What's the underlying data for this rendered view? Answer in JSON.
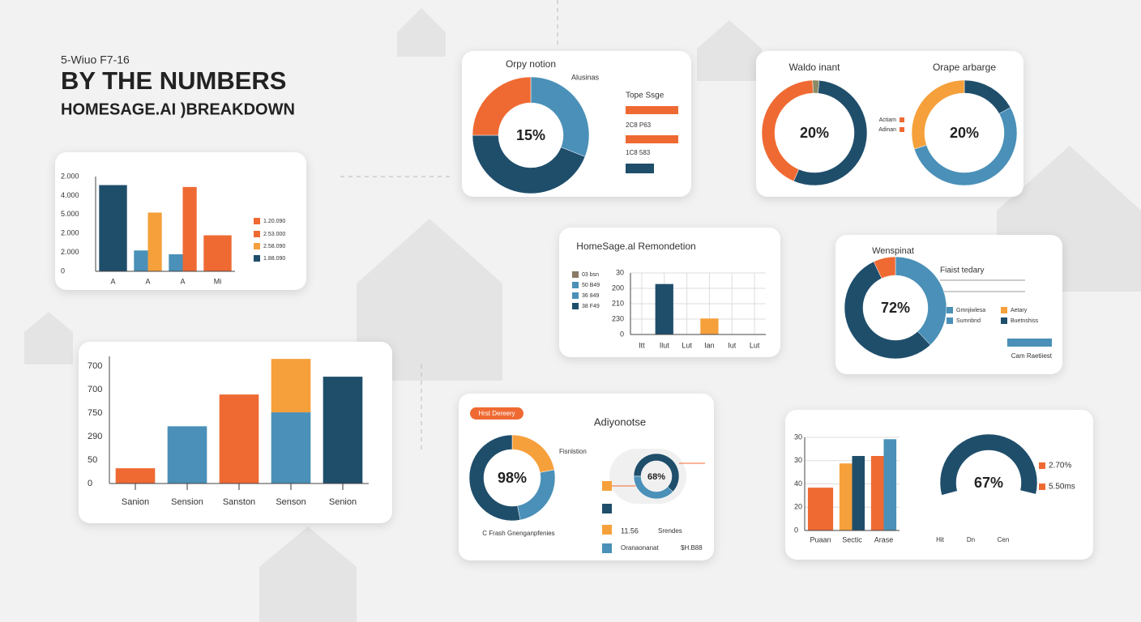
{
  "header": {
    "kicker": "5-Wiuo F7-16",
    "title": "BY THE  NUMBERS",
    "subtitle": "HOMESAGE.AI )BREAKDOWN"
  },
  "chart_data": [
    {
      "type": "bar",
      "axis_labels": [
        "2.000",
        "4.000",
        "5.000",
        "2.000",
        "2.000",
        "0"
      ],
      "categories": [
        "A",
        "A",
        "A",
        "Mi"
      ],
      "ylim": [
        0,
        100
      ],
      "series": [
        {
          "color": "#1f4e6b",
          "values": [
            91,
            null,
            null,
            null
          ]
        },
        {
          "color": "#4a90b8",
          "values": [
            null,
            22,
            18,
            null
          ]
        },
        {
          "color": "#f6a03b",
          "values": [
            null,
            62,
            null,
            null
          ]
        },
        {
          "color": "#ef6a33",
          "values": [
            null,
            null,
            89,
            38
          ]
        }
      ],
      "legend": [
        {
          "name": "1.20.090",
          "color": "#ef6a33"
        },
        {
          "name": "2.53.000",
          "color": "#ef6a33"
        },
        {
          "name": "2.58.090",
          "color": "#f6a03b"
        },
        {
          "name": "1.88.090",
          "color": "#1f4e6b"
        }
      ]
    },
    {
      "type": "donut",
      "title": "Orpy notion",
      "center_label": "15%",
      "values": [
        31,
        44,
        25
      ],
      "colors": [
        "#4a90b8",
        "#1f4e6b",
        "#ef6a33"
      ],
      "notes": [
        "Alusinas",
        "Tope Ssge",
        "2C8 P63",
        "1C8 583"
      ]
    },
    {
      "type": "donut",
      "title": "Waldo inant",
      "center_label": "20%",
      "values": [
        2,
        55,
        43
      ],
      "colors": [
        "#8a8a66",
        "#1f4e6b",
        "#ef6a33"
      ],
      "legend": [
        {
          "name": "Actiam",
          "color": "#ef6a33"
        },
        {
          "name": "Adinan",
          "color": "#ef6a33"
        }
      ]
    },
    {
      "type": "donut",
      "title": "Orape arbarge",
      "center_label": "20%",
      "values": [
        17,
        53,
        30
      ],
      "colors": [
        "#1f4e6b",
        "#4a90b8",
        "#f6a03b"
      ]
    },
    {
      "type": "bar",
      "title": "HomeSage.al Remondetion",
      "axis_labels": [
        "30",
        "200",
        "210",
        "230",
        "0"
      ],
      "categories": [
        "Itt",
        "Ilut",
        "Lut",
        "Ian",
        "Iut",
        "Lut"
      ],
      "ylim": [
        0,
        100
      ],
      "grid": true,
      "xgrid": true,
      "series": [
        {
          "color": "#1f4e6b",
          "values": [
            null,
            82,
            null,
            null,
            null,
            null
          ]
        },
        {
          "color": "#f6a03b",
          "values": [
            null,
            null,
            null,
            26,
            null,
            null
          ]
        }
      ],
      "legend": [
        {
          "name": "03 bsn",
          "color": "#8a7a66"
        },
        {
          "name": "50 B49",
          "color": "#4a90b8"
        },
        {
          "name": "36 849",
          "color": "#4a90b8"
        },
        {
          "name": "38 F49",
          "color": "#1f4e6b"
        }
      ]
    },
    {
      "type": "donut",
      "title": "Wenspinat",
      "center_label": "72%",
      "values": [
        38,
        55,
        7
      ],
      "colors": [
        "#4a90b8",
        "#1f4e6b",
        "#ef6a33"
      ],
      "notes": [
        "Fiaist tedary",
        "Cam Raetiiest"
      ],
      "legend": [
        {
          "name": "Gmnjiwlesa",
          "color": "#4a90b8"
        },
        {
          "name": "Sumnbnd",
          "color": "#4a90b8"
        },
        {
          "name": "Aetary",
          "color": "#f6a03b"
        },
        {
          "name": "Buetnshiss",
          "color": "#1f4e6b"
        }
      ]
    },
    {
      "type": "bar",
      "axis_labels": [
        "700",
        "700",
        "750",
        "290",
        "50",
        "0"
      ],
      "categories": [
        "Sanion",
        "Sension",
        "Sanston",
        "Senson",
        "Senion"
      ],
      "ylim": [
        0,
        100
      ],
      "stacked": true,
      "series": [
        {
          "color": "#4a90b8",
          "values": [
            null,
            45,
            null,
            56,
            null
          ]
        },
        {
          "color": "#1f4e6b",
          "values": [
            null,
            null,
            null,
            null,
            84
          ]
        },
        {
          "color": "#ef6a33",
          "values": [
            12,
            null,
            70,
            null,
            null
          ]
        },
        {
          "color": "#f6a03b",
          "values": [
            null,
            null,
            null,
            42,
            null
          ]
        }
      ]
    },
    {
      "type": "donut",
      "title": "Adiyonotse",
      "center_label": "98%",
      "values": [
        22,
        25,
        53
      ],
      "colors": [
        "#f6a03b",
        "#4a90b8",
        "#1f4e6b"
      ],
      "notes": [
        "Hrst Dereery",
        "Fisnlstion",
        "C Frash Gnenganpfenies"
      ]
    },
    {
      "type": "donut",
      "center_label": "68%",
      "values": [
        62,
        38
      ],
      "colors": [
        "#1f4e6b",
        "#4a90b8"
      ],
      "notes": [
        "11.56",
        "Srendes",
        "Oranaonanat",
        "$H.B88"
      ]
    },
    {
      "type": "bar",
      "axis_labels": [
        "30",
        "30",
        "40",
        "20",
        "0"
      ],
      "categories": [
        "Puaan",
        "Sectic",
        "Arase"
      ],
      "ylim": [
        0,
        100
      ],
      "grid": true,
      "series": [
        {
          "color": "#ef6a33",
          "values": [
            46,
            null,
            80
          ]
        },
        {
          "color": "#f6a03b",
          "values": [
            null,
            72,
            null
          ]
        },
        {
          "color": "#1f4e6b",
          "values": [
            null,
            80,
            null
          ]
        },
        {
          "color": "#4a90b8",
          "values": [
            null,
            null,
            98
          ]
        }
      ],
      "notes": [
        "Hit",
        "Dn",
        "Cen"
      ]
    },
    {
      "type": "donut",
      "center_label": "67%",
      "values": [
        58,
        42
      ],
      "colors": [
        "#1f4e6b",
        "#ffffff"
      ],
      "legend": [
        {
          "name": "2.70%",
          "color": "#ef6a33"
        },
        {
          "name": "5.50ms",
          "color": "#ef6a33"
        }
      ]
    }
  ]
}
